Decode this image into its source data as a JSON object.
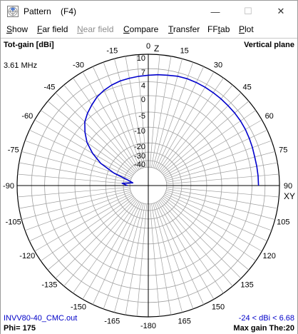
{
  "window": {
    "title": "Pattern    (F4)",
    "app_icon": "pattern-app-icon",
    "controls": {
      "minimize": "—",
      "maximize": "☐",
      "close": "✕"
    }
  },
  "menu": [
    {
      "pre": "",
      "acc": "S",
      "post": "how",
      "disabled": false
    },
    {
      "pre": "",
      "acc": "F",
      "post": "ar field",
      "disabled": false
    },
    {
      "pre": "",
      "acc": "N",
      "post": "ear field",
      "disabled": true
    },
    {
      "pre": "",
      "acc": "C",
      "post": "ompare",
      "disabled": false
    },
    {
      "pre": "",
      "acc": "T",
      "post": "ransfer",
      "disabled": false
    },
    {
      "pre": "FF",
      "acc": "t",
      "post": "ab",
      "disabled": false
    },
    {
      "pre": "",
      "acc": "P",
      "post": "lot",
      "disabled": false
    }
  ],
  "plot": {
    "top_left_label": "Tot-gain [dBi]",
    "top_right_label": "Vertical plane",
    "frequency": "3.61 MHz",
    "file_name": "INVV80-40_CMC.out",
    "range_text": "-24 < dBi < 6.68",
    "phi_text": "Phi= 175",
    "max_gain_text": "Max gain The:20",
    "axis_z": "Z",
    "axis_xy": "XY",
    "ring_labels": [
      "10",
      "7",
      "4",
      "0",
      "-5",
      "-10",
      "-20",
      "-30",
      "-40"
    ],
    "angle_labels": [
      {
        "a": 0,
        "t": "0"
      },
      {
        "a": 15,
        "t": "15"
      },
      {
        "a": 30,
        "t": "30"
      },
      {
        "a": 45,
        "t": "45"
      },
      {
        "a": 60,
        "t": "60"
      },
      {
        "a": 75,
        "t": "75"
      },
      {
        "a": 90,
        "t": "90"
      },
      {
        "a": 105,
        "t": "105"
      },
      {
        "a": 120,
        "t": "120"
      },
      {
        "a": 135,
        "t": "135"
      },
      {
        "a": 150,
        "t": "150"
      },
      {
        "a": 165,
        "t": "165"
      },
      {
        "a": 180,
        "t": "-180"
      },
      {
        "a": -165,
        "t": "-165"
      },
      {
        "a": -150,
        "t": "-150"
      },
      {
        "a": -135,
        "t": "-135"
      },
      {
        "a": -120,
        "t": "-120"
      },
      {
        "a": -105,
        "t": "-105"
      },
      {
        "a": -90,
        "t": "-90"
      },
      {
        "a": -75,
        "t": "-75"
      },
      {
        "a": -60,
        "t": "-60"
      },
      {
        "a": -45,
        "t": "-45"
      },
      {
        "a": -30,
        "t": "-30"
      },
      {
        "a": -15,
        "t": "-15"
      }
    ],
    "pattern_color": "#0000cc",
    "grid_color": "#a0a0a0",
    "pattern": [
      {
        "angle": -90,
        "level": 0.16
      },
      {
        "angle": -85,
        "level": 0.2
      },
      {
        "angle": -80,
        "level": 0.12
      },
      {
        "angle": -75,
        "level": 0.16
      },
      {
        "angle": -70,
        "level": 0.28
      },
      {
        "angle": -65,
        "level": 0.4
      },
      {
        "angle": -60,
        "level": 0.49
      },
      {
        "angle": -55,
        "level": 0.57
      },
      {
        "angle": -50,
        "level": 0.63
      },
      {
        "angle": -45,
        "level": 0.685
      },
      {
        "angle": -40,
        "level": 0.72
      },
      {
        "angle": -35,
        "level": 0.75
      },
      {
        "angle": -30,
        "level": 0.78
      },
      {
        "angle": -25,
        "level": 0.8
      },
      {
        "angle": -20,
        "level": 0.815
      },
      {
        "angle": -15,
        "level": 0.825
      },
      {
        "angle": -10,
        "level": 0.83
      },
      {
        "angle": -5,
        "level": 0.835
      },
      {
        "angle": 0,
        "level": 0.84
      },
      {
        "angle": 5,
        "level": 0.847
      },
      {
        "angle": 10,
        "level": 0.853
      },
      {
        "angle": 15,
        "level": 0.862
      },
      {
        "angle": 20,
        "level": 0.866
      },
      {
        "angle": 25,
        "level": 0.866
      },
      {
        "angle": 30,
        "level": 0.865
      },
      {
        "angle": 35,
        "level": 0.863
      },
      {
        "angle": 40,
        "level": 0.862
      },
      {
        "angle": 45,
        "level": 0.86
      },
      {
        "angle": 50,
        "level": 0.86
      },
      {
        "angle": 55,
        "level": 0.858
      },
      {
        "angle": 60,
        "level": 0.855
      },
      {
        "angle": 65,
        "level": 0.85
      },
      {
        "angle": 70,
        "level": 0.845
      },
      {
        "angle": 75,
        "level": 0.84
      },
      {
        "angle": 80,
        "level": 0.84
      },
      {
        "angle": 85,
        "level": 0.84
      },
      {
        "angle": 90,
        "level": 0.84
      }
    ]
  }
}
